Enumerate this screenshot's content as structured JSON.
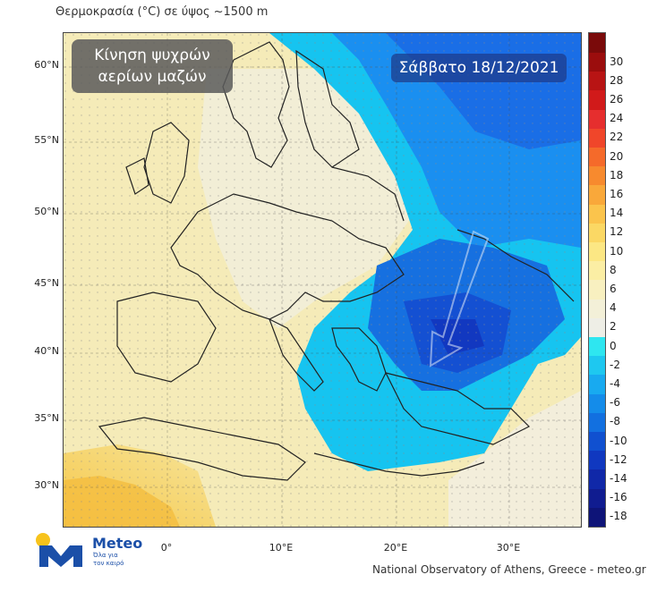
{
  "header": {
    "title": "Θερμοκρασία (°C) σε ύψος ~1500 m"
  },
  "overlay": {
    "line1": "Κίνηση ψυχρών",
    "line2": "αερίων μαζών"
  },
  "date": {
    "label": "Σάββατο 18/12/2021"
  },
  "axes": {
    "lat_labels": [
      "60°N",
      "55°N",
      "50°N",
      "45°N",
      "40°N",
      "35°N",
      "30°N"
    ],
    "lon_labels": [
      "0°",
      "10°E",
      "20°E",
      "30°E"
    ]
  },
  "colorbar": {
    "labels": [
      "30",
      "28",
      "26",
      "24",
      "22",
      "20",
      "18",
      "16",
      "14",
      "12",
      "10",
      "8",
      "6",
      "4",
      "2",
      "0",
      "-2",
      "-4",
      "-6",
      "-8",
      "-10",
      "-12",
      "-14",
      "-16",
      "-18"
    ],
    "colors": [
      "#9b0d0d",
      "#b81414",
      "#d11a1a",
      "#e62e2e",
      "#f0462a",
      "#f56a2a",
      "#f78a2e",
      "#f9a83a",
      "#fbc44c",
      "#fbd864",
      "#fce784",
      "#fbeea4",
      "#f8f0c0",
      "#f3f0d8",
      "#eeeee6",
      "#2ee6f0",
      "#1ec8f0",
      "#18aaf0",
      "#148cea",
      "#1270e0",
      "#1050d0",
      "#1038c0",
      "#1028a8",
      "#101c90",
      "#0e1478"
    ]
  },
  "logo": {
    "brand": "Meteo",
    "tagline": "Όλα για τον καιρό"
  },
  "footer": {
    "credit": "National Observatory of Athens, Greece - meteo.gr"
  }
}
